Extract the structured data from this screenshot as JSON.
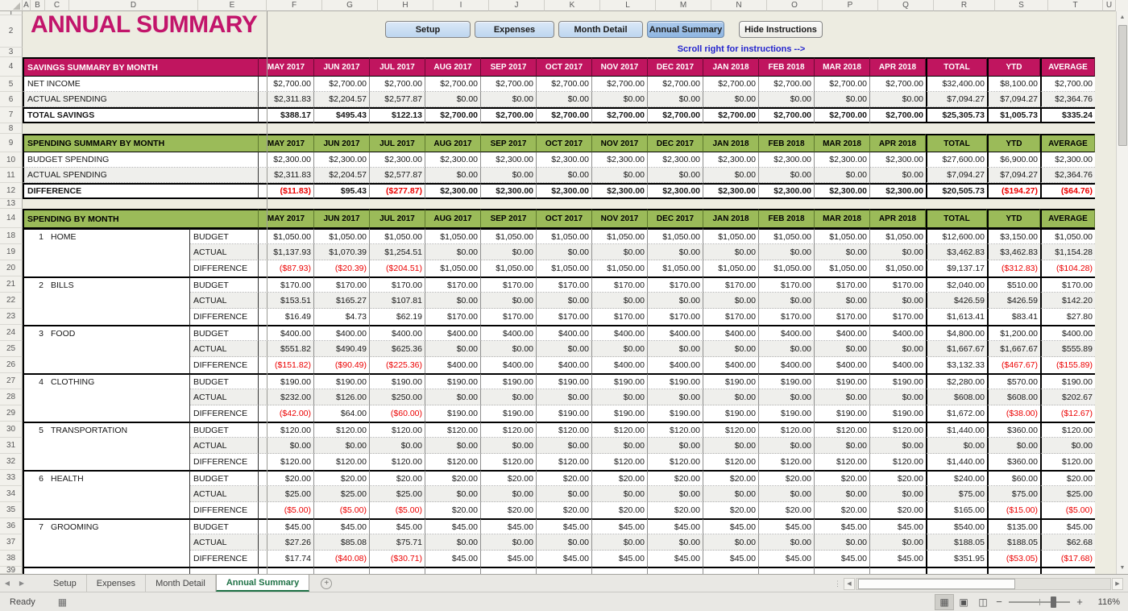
{
  "title": "ANNUAL SUMMARY",
  "instruction_note": "Scroll right for instructions -->",
  "nav_buttons": [
    {
      "label": "Setup",
      "active": false,
      "style": "blue"
    },
    {
      "label": "Expenses",
      "active": false,
      "style": "blue"
    },
    {
      "label": "Month Detail",
      "active": false,
      "style": "blue"
    },
    {
      "label": "Annual Summary",
      "active": true,
      "style": "blue"
    },
    {
      "label": "Hide Instructions",
      "active": false,
      "style": "plain"
    }
  ],
  "column_letters": [
    "A",
    "B",
    "C",
    "D",
    "E",
    "F",
    "G",
    "H",
    "I",
    "J",
    "K",
    "L",
    "M",
    "N",
    "O",
    "P",
    "Q",
    "R",
    "S",
    "T",
    "U"
  ],
  "row_numbers": [
    "1",
    "2",
    "3",
    "4",
    "5",
    "6",
    "7",
    "8",
    "9",
    "10",
    "11",
    "12",
    "13",
    "14",
    "18",
    "19",
    "20",
    "21",
    "22",
    "23",
    "24",
    "25",
    "26",
    "27",
    "28",
    "29",
    "30",
    "31",
    "32",
    "33",
    "34",
    "35",
    "36",
    "37",
    "38",
    "39"
  ],
  "month_headers": [
    "MAY 2017",
    "JUN 2017",
    "JUL 2017",
    "AUG 2017",
    "SEP 2017",
    "OCT 2017",
    "NOV 2017",
    "DEC 2017",
    "JAN 2018",
    "FEB 2018",
    "MAR 2018",
    "APR 2018",
    "TOTAL",
    "YTD",
    "AVERAGE"
  ],
  "savings_table": {
    "title": "SAVINGS SUMMARY BY MONTH",
    "rows": [
      {
        "label": "NET INCOME",
        "bold": false,
        "shaded": false,
        "values": [
          "$2,700.00",
          "$2,700.00",
          "$2,700.00",
          "$2,700.00",
          "$2,700.00",
          "$2,700.00",
          "$2,700.00",
          "$2,700.00",
          "$2,700.00",
          "$2,700.00",
          "$2,700.00",
          "$2,700.00",
          "$32,400.00",
          "$8,100.00",
          "$2,700.00"
        ]
      },
      {
        "label": "ACTUAL SPENDING",
        "bold": false,
        "shaded": true,
        "values": [
          "$2,311.83",
          "$2,204.57",
          "$2,577.87",
          "$0.00",
          "$0.00",
          "$0.00",
          "$0.00",
          "$0.00",
          "$0.00",
          "$0.00",
          "$0.00",
          "$0.00",
          "$7,094.27",
          "$7,094.27",
          "$2,364.76"
        ]
      },
      {
        "label": "TOTAL SAVINGS",
        "bold": true,
        "shaded": false,
        "values": [
          "$388.17",
          "$495.43",
          "$122.13",
          "$2,700.00",
          "$2,700.00",
          "$2,700.00",
          "$2,700.00",
          "$2,700.00",
          "$2,700.00",
          "$2,700.00",
          "$2,700.00",
          "$2,700.00",
          "$25,305.73",
          "$1,005.73",
          "$335.24"
        ]
      }
    ]
  },
  "spending_summary_table": {
    "title": "SPENDING SUMMARY BY MONTH",
    "rows": [
      {
        "label": "BUDGET SPENDING",
        "bold": false,
        "shaded": false,
        "values": [
          "$2,300.00",
          "$2,300.00",
          "$2,300.00",
          "$2,300.00",
          "$2,300.00",
          "$2,300.00",
          "$2,300.00",
          "$2,300.00",
          "$2,300.00",
          "$2,300.00",
          "$2,300.00",
          "$2,300.00",
          "$27,600.00",
          "$6,900.00",
          "$2,300.00"
        ]
      },
      {
        "label": "ACTUAL SPENDING",
        "bold": false,
        "shaded": true,
        "values": [
          "$2,311.83",
          "$2,204.57",
          "$2,577.87",
          "$0.00",
          "$0.00",
          "$0.00",
          "$0.00",
          "$0.00",
          "$0.00",
          "$0.00",
          "$0.00",
          "$0.00",
          "$7,094.27",
          "$7,094.27",
          "$2,364.76"
        ]
      },
      {
        "label": "DIFFERENCE",
        "bold": true,
        "shaded": false,
        "values": [
          "($11.83)",
          "$95.43",
          "($277.87)",
          "$2,300.00",
          "$2,300.00",
          "$2,300.00",
          "$2,300.00",
          "$2,300.00",
          "$2,300.00",
          "$2,300.00",
          "$2,300.00",
          "$2,300.00",
          "$20,505.73",
          "($194.27)",
          "($64.76)"
        ]
      }
    ]
  },
  "spending_by_month": {
    "title": "SPENDING BY MONTH",
    "sub_labels": [
      "BUDGET",
      "ACTUAL",
      "DIFFERENCE"
    ],
    "categories": [
      {
        "num": "1",
        "name": "HOME",
        "budget": [
          "$1,050.00",
          "$1,050.00",
          "$1,050.00",
          "$1,050.00",
          "$1,050.00",
          "$1,050.00",
          "$1,050.00",
          "$1,050.00",
          "$1,050.00",
          "$1,050.00",
          "$1,050.00",
          "$1,050.00",
          "$12,600.00",
          "$3,150.00",
          "$1,050.00"
        ],
        "actual": [
          "$1,137.93",
          "$1,070.39",
          "$1,254.51",
          "$0.00",
          "$0.00",
          "$0.00",
          "$0.00",
          "$0.00",
          "$0.00",
          "$0.00",
          "$0.00",
          "$0.00",
          "$3,462.83",
          "$3,462.83",
          "$1,154.28"
        ],
        "difference": [
          "($87.93)",
          "($20.39)",
          "($204.51)",
          "$1,050.00",
          "$1,050.00",
          "$1,050.00",
          "$1,050.00",
          "$1,050.00",
          "$1,050.00",
          "$1,050.00",
          "$1,050.00",
          "$1,050.00",
          "$9,137.17",
          "($312.83)",
          "($104.28)"
        ]
      },
      {
        "num": "2",
        "name": "BILLS",
        "budget": [
          "$170.00",
          "$170.00",
          "$170.00",
          "$170.00",
          "$170.00",
          "$170.00",
          "$170.00",
          "$170.00",
          "$170.00",
          "$170.00",
          "$170.00",
          "$170.00",
          "$2,040.00",
          "$510.00",
          "$170.00"
        ],
        "actual": [
          "$153.51",
          "$165.27",
          "$107.81",
          "$0.00",
          "$0.00",
          "$0.00",
          "$0.00",
          "$0.00",
          "$0.00",
          "$0.00",
          "$0.00",
          "$0.00",
          "$426.59",
          "$426.59",
          "$142.20"
        ],
        "difference": [
          "$16.49",
          "$4.73",
          "$62.19",
          "$170.00",
          "$170.00",
          "$170.00",
          "$170.00",
          "$170.00",
          "$170.00",
          "$170.00",
          "$170.00",
          "$170.00",
          "$1,613.41",
          "$83.41",
          "$27.80"
        ]
      },
      {
        "num": "3",
        "name": "FOOD",
        "budget": [
          "$400.00",
          "$400.00",
          "$400.00",
          "$400.00",
          "$400.00",
          "$400.00",
          "$400.00",
          "$400.00",
          "$400.00",
          "$400.00",
          "$400.00",
          "$400.00",
          "$4,800.00",
          "$1,200.00",
          "$400.00"
        ],
        "actual": [
          "$551.82",
          "$490.49",
          "$625.36",
          "$0.00",
          "$0.00",
          "$0.00",
          "$0.00",
          "$0.00",
          "$0.00",
          "$0.00",
          "$0.00",
          "$0.00",
          "$1,667.67",
          "$1,667.67",
          "$555.89"
        ],
        "difference": [
          "($151.82)",
          "($90.49)",
          "($225.36)",
          "$400.00",
          "$400.00",
          "$400.00",
          "$400.00",
          "$400.00",
          "$400.00",
          "$400.00",
          "$400.00",
          "$400.00",
          "$3,132.33",
          "($467.67)",
          "($155.89)"
        ]
      },
      {
        "num": "4",
        "name": "CLOTHING",
        "budget": [
          "$190.00",
          "$190.00",
          "$190.00",
          "$190.00",
          "$190.00",
          "$190.00",
          "$190.00",
          "$190.00",
          "$190.00",
          "$190.00",
          "$190.00",
          "$190.00",
          "$2,280.00",
          "$570.00",
          "$190.00"
        ],
        "actual": [
          "$232.00",
          "$126.00",
          "$250.00",
          "$0.00",
          "$0.00",
          "$0.00",
          "$0.00",
          "$0.00",
          "$0.00",
          "$0.00",
          "$0.00",
          "$0.00",
          "$608.00",
          "$608.00",
          "$202.67"
        ],
        "difference": [
          "($42.00)",
          "$64.00",
          "($60.00)",
          "$190.00",
          "$190.00",
          "$190.00",
          "$190.00",
          "$190.00",
          "$190.00",
          "$190.00",
          "$190.00",
          "$190.00",
          "$1,672.00",
          "($38.00)",
          "($12.67)"
        ]
      },
      {
        "num": "5",
        "name": "TRANSPORTATION",
        "budget": [
          "$120.00",
          "$120.00",
          "$120.00",
          "$120.00",
          "$120.00",
          "$120.00",
          "$120.00",
          "$120.00",
          "$120.00",
          "$120.00",
          "$120.00",
          "$120.00",
          "$1,440.00",
          "$360.00",
          "$120.00"
        ],
        "actual": [
          "$0.00",
          "$0.00",
          "$0.00",
          "$0.00",
          "$0.00",
          "$0.00",
          "$0.00",
          "$0.00",
          "$0.00",
          "$0.00",
          "$0.00",
          "$0.00",
          "$0.00",
          "$0.00",
          "$0.00"
        ],
        "difference": [
          "$120.00",
          "$120.00",
          "$120.00",
          "$120.00",
          "$120.00",
          "$120.00",
          "$120.00",
          "$120.00",
          "$120.00",
          "$120.00",
          "$120.00",
          "$120.00",
          "$1,440.00",
          "$360.00",
          "$120.00"
        ]
      },
      {
        "num": "6",
        "name": "HEALTH",
        "budget": [
          "$20.00",
          "$20.00",
          "$20.00",
          "$20.00",
          "$20.00",
          "$20.00",
          "$20.00",
          "$20.00",
          "$20.00",
          "$20.00",
          "$20.00",
          "$20.00",
          "$240.00",
          "$60.00",
          "$20.00"
        ],
        "actual": [
          "$25.00",
          "$25.00",
          "$25.00",
          "$0.00",
          "$0.00",
          "$0.00",
          "$0.00",
          "$0.00",
          "$0.00",
          "$0.00",
          "$0.00",
          "$0.00",
          "$75.00",
          "$75.00",
          "$25.00"
        ],
        "difference": [
          "($5.00)",
          "($5.00)",
          "($5.00)",
          "$20.00",
          "$20.00",
          "$20.00",
          "$20.00",
          "$20.00",
          "$20.00",
          "$20.00",
          "$20.00",
          "$20.00",
          "$165.00",
          "($15.00)",
          "($5.00)"
        ]
      },
      {
        "num": "7",
        "name": "GROOMING",
        "budget": [
          "$45.00",
          "$45.00",
          "$45.00",
          "$45.00",
          "$45.00",
          "$45.00",
          "$45.00",
          "$45.00",
          "$45.00",
          "$45.00",
          "$45.00",
          "$45.00",
          "$540.00",
          "$135.00",
          "$45.00"
        ],
        "actual": [
          "$27.26",
          "$85.08",
          "$75.71",
          "$0.00",
          "$0.00",
          "$0.00",
          "$0.00",
          "$0.00",
          "$0.00",
          "$0.00",
          "$0.00",
          "$0.00",
          "$188.05",
          "$188.05",
          "$62.68"
        ],
        "difference": [
          "$17.74",
          "($40.08)",
          "($30.71)",
          "$45.00",
          "$45.00",
          "$45.00",
          "$45.00",
          "$45.00",
          "$45.00",
          "$45.00",
          "$45.00",
          "$45.00",
          "$351.95",
          "($53.05)",
          "($17.68)"
        ]
      }
    ]
  },
  "sheet_tabs": [
    "Setup",
    "Expenses",
    "Month Detail",
    "Annual Summary"
  ],
  "active_tab": "Annual Summary",
  "status_bar": {
    "mode": "Ready",
    "zoom_level": "116%"
  },
  "colors": {
    "accent_pink": "#C0155F",
    "accent_green": "#9BBB59",
    "negative_red": "#EC0000",
    "button_blue": "#BDD6EF",
    "button_blue_active": "#8FB6E2",
    "active_tab_green": "#1E7145",
    "sheet_background": "#EDECE1"
  }
}
